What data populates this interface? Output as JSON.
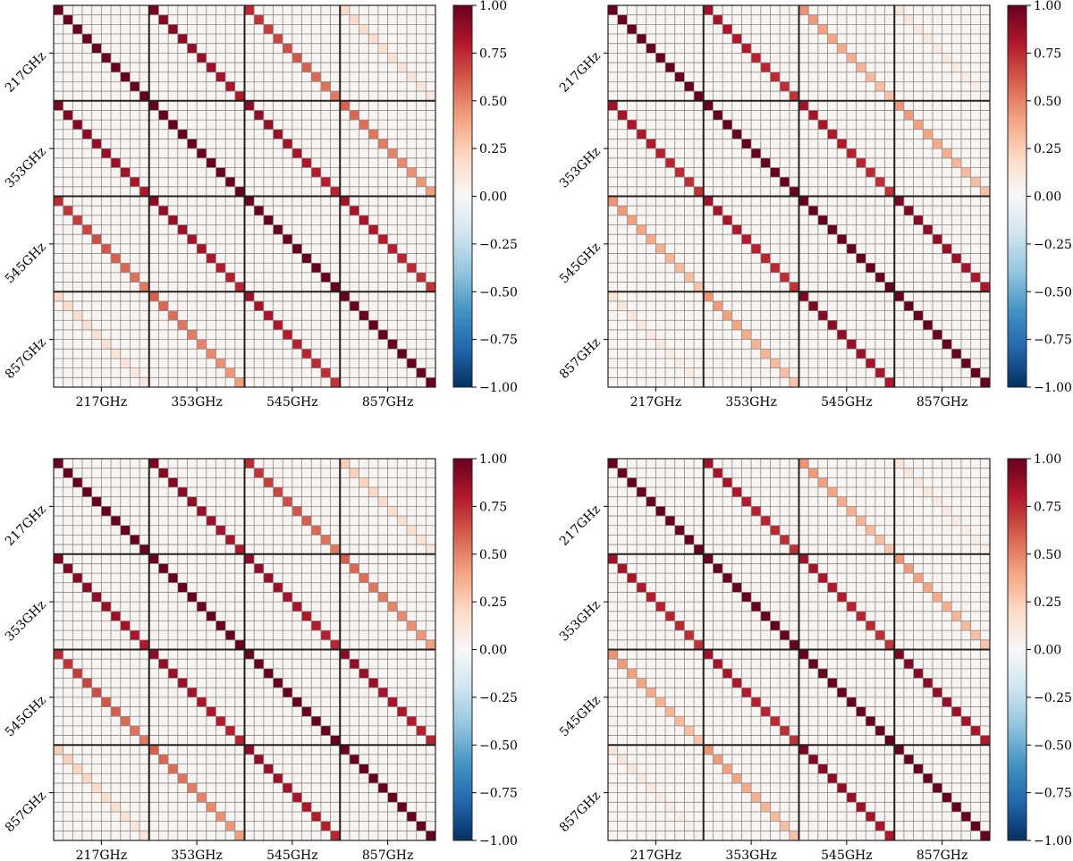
{
  "figure": {
    "panel_count": 4
  },
  "colorbar": {
    "colormap": "RdBu_r",
    "ticks": [
      "1.00",
      "0.75",
      "0.50",
      "0.25",
      "0.00",
      "−0.25",
      "−0.50",
      "−0.75",
      "−1.00"
    ],
    "stops": [
      "#053061",
      "#2166ac",
      "#4393c3",
      "#92c5de",
      "#d1e5f0",
      "#f7f7f7",
      "#fddbc7",
      "#f4a582",
      "#d6604d",
      "#b2182b",
      "#67001f"
    ]
  },
  "chart_data": [
    {
      "type": "heatmap",
      "panel": "top-left",
      "frequencies": [
        "217GHz",
        "353GHz",
        "545GHz",
        "857GHz"
      ],
      "bins_per_block": 10,
      "vlim": [
        -1,
        1
      ],
      "grid": true,
      "block_diagonal_correlation": [
        [
          1.0,
          0.95,
          0.75,
          0.2
        ],
        [
          0.95,
          1.0,
          0.9,
          0.6
        ],
        [
          0.75,
          0.9,
          1.0,
          0.85
        ],
        [
          0.2,
          0.6,
          0.85,
          1.0
        ]
      ],
      "diagonal_falloff": [
        0.9,
        0.75,
        0.5,
        0.2
      ]
    },
    {
      "type": "heatmap",
      "panel": "top-right",
      "frequencies": [
        "217GHz",
        "353GHz",
        "545GHz",
        "857GHz"
      ],
      "bins_per_block": 10,
      "vlim": [
        -1,
        1
      ],
      "grid": true,
      "block_diagonal_correlation": [
        [
          1.0,
          0.85,
          0.45,
          0.12
        ],
        [
          0.85,
          1.0,
          0.85,
          0.45
        ],
        [
          0.45,
          0.85,
          1.0,
          0.95
        ],
        [
          0.12,
          0.45,
          0.95,
          1.0
        ]
      ],
      "diagonal_falloff": [
        0.85,
        0.75,
        0.4,
        0.15
      ]
    },
    {
      "type": "heatmap",
      "panel": "bottom-left",
      "frequencies": [
        "217GHz",
        "353GHz",
        "545GHz",
        "857GHz"
      ],
      "bins_per_block": 10,
      "vlim": [
        -1,
        1
      ],
      "grid": true,
      "block_diagonal_correlation": [
        [
          1.0,
          0.95,
          0.75,
          0.25
        ],
        [
          0.95,
          1.0,
          0.9,
          0.6
        ],
        [
          0.75,
          0.9,
          1.0,
          0.9
        ],
        [
          0.25,
          0.6,
          0.9,
          1.0
        ]
      ],
      "diagonal_falloff": [
        0.9,
        0.75,
        0.5,
        0.2
      ]
    },
    {
      "type": "heatmap",
      "panel": "bottom-right",
      "frequencies": [
        "217GHz",
        "353GHz",
        "545GHz",
        "857GHz"
      ],
      "bins_per_block": 10,
      "vlim": [
        -1,
        1
      ],
      "grid": true,
      "block_diagonal_correlation": [
        [
          1.0,
          0.85,
          0.45,
          0.12
        ],
        [
          0.85,
          1.0,
          0.85,
          0.45
        ],
        [
          0.45,
          0.85,
          1.0,
          0.95
        ],
        [
          0.12,
          0.45,
          0.95,
          1.0
        ]
      ],
      "diagonal_falloff": [
        0.85,
        0.75,
        0.4,
        0.15
      ]
    }
  ]
}
